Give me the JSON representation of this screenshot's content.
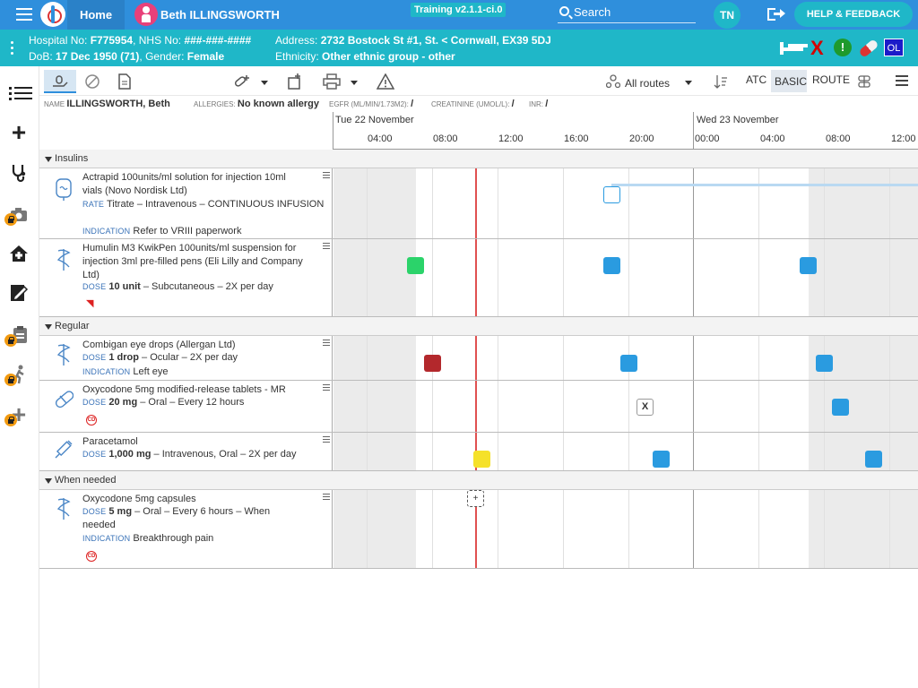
{
  "topbar": {
    "home_label": "Home",
    "patient_name": "Beth ILLINGSWORTH",
    "training_badge": "Training v2.1.1-ci.0",
    "search_placeholder": "Search",
    "user_initials": "TN",
    "help_label": "HELP & FEEDBACK",
    "icons": [
      "menu-icon",
      "app-logo",
      "patient-female-icon",
      "search-icon",
      "logout-icon"
    ]
  },
  "banner": {
    "hospital_label": "Hospital No: ",
    "hospital_value": "F775954",
    "nhs_label": ", NHS No: ",
    "nhs_value": "###-###-####",
    "address_label": "Address: ",
    "address_value": "2732 Bostock St #1, St. < Cornwall, EX39 5DJ",
    "dob_label": "DoB: ",
    "dob_value": "17 Dec 1950 (71)",
    "gender_label": ", Gender: ",
    "gender_value": "Female",
    "ethnicity_label": "Ethnicity: ",
    "ethnicity_value": "Other ethnic group - other",
    "status_icons": {
      "cross": "X",
      "alert": "!",
      "ol": "OL"
    },
    "icons": [
      "bed-icon",
      "cross-icon",
      "alert-icon",
      "pill-icon",
      "ol-badge"
    ]
  },
  "leftnav": {
    "items": [
      {
        "name": "list-icon",
        "locked": false
      },
      {
        "name": "add-icon",
        "glyph": "+",
        "locked": false
      },
      {
        "name": "stethoscope-icon",
        "locked": false
      },
      {
        "name": "camera-icon",
        "locked": true
      },
      {
        "name": "home-care-icon",
        "locked": false
      },
      {
        "name": "edit-notes-icon",
        "locked": false
      },
      {
        "name": "clipboard-icon",
        "locked": true
      },
      {
        "name": "walking-icon",
        "locked": true
      },
      {
        "name": "add-lock-icon",
        "locked": true
      }
    ]
  },
  "toolbar": {
    "routes_label": "All routes",
    "atc_label": "ATC",
    "basic_label": "BASIC",
    "route_label": "ROUTE",
    "icons": [
      "hand-pill-icon",
      "no-entry-icon",
      "document-icon",
      "add-med-icon",
      "add-rx-icon",
      "printer-icon",
      "warning-icon",
      "routes-icon",
      "sort-icon",
      "grid-icon",
      "menu-icon"
    ]
  },
  "infostrip": {
    "name_label": "NAME",
    "name_value": "ILLINGSWORTH, Beth",
    "allergies_label": "ALLERGIES:",
    "allergies_value": "No known allergy",
    "egfr_label": "EGFR (ML/MIN/1.73M2):",
    "egfr_value": "/",
    "creat_label": "CREATININE (UMOL/L):",
    "creat_value": "/",
    "inr_label": "INR:",
    "inr_value": "/"
  },
  "timeline": {
    "day1": "Tue 22 November",
    "day2": "Wed 23 November",
    "hours": [
      "04:00",
      "08:00",
      "12:00",
      "16:00",
      "20:00",
      "00:00",
      "04:00",
      "08:00",
      "12:00"
    ]
  },
  "sections": [
    {
      "title": "Insulins",
      "meds": [
        {
          "name": "Actrapid 100units/ml solution for injection 10ml vials (Novo Nordisk Ltd)",
          "rate_label": "RATE",
          "rate_text": "Titrate – Intravenous – CONTINUOUS INFUSION",
          "indication_label": "INDICATION",
          "indication_text": "Refer to VRIII paperwork",
          "icon": "infusion-bag-icon"
        },
        {
          "name": "Humulin M3 KwikPen 100units/ml suspension for injection 3ml pre-filled pens (Eli Lilly and Company Ltd)",
          "dose_label": "DOSE",
          "dose_value": "10 unit",
          "dose_text": " – Subcutaneous – 2X per day",
          "icon": "pharmacy-icon",
          "badge": "signal-icon"
        }
      ]
    },
    {
      "title": "Regular",
      "meds": [
        {
          "name": "Combigan eye drops (Allergan Ltd)",
          "dose_label": "DOSE",
          "dose_value": "1 drop",
          "dose_text": " – Ocular – 2X per day",
          "indication_label": "INDICATION",
          "indication_text": "Left eye",
          "icon": "pharmacy-icon"
        },
        {
          "name": "Oxycodone 5mg modified-release tablets - MR",
          "dose_label": "DOSE",
          "dose_value": "20 mg",
          "dose_text": " – Oral – Every 12 hours",
          "icon": "capsule-icon",
          "badge": "CD"
        },
        {
          "name": "Paracetamol",
          "dose_label": "DOSE",
          "dose_value": "1,000 mg",
          "dose_text": " – Intravenous, Oral – 2X per day",
          "icon": "syringe-icon"
        }
      ]
    },
    {
      "title": "When needed",
      "meds": [
        {
          "name": "Oxycodone 5mg capsules",
          "dose_label": "DOSE",
          "dose_value": "5 mg",
          "dose_text": " – Oral – Every 6 hours – When needed",
          "indication_label": "INDICATION",
          "indication_text": "Breakthrough pain",
          "icon": "pharmacy-icon",
          "badge": "CD"
        }
      ]
    }
  ],
  "administrations": {
    "x_mark": "X",
    "prn_plus": "+",
    "status_colors": {
      "given": "#2bd36a",
      "scheduled": "#2a9be0",
      "missed": "#b3282c",
      "due": "#f5e12a"
    }
  }
}
